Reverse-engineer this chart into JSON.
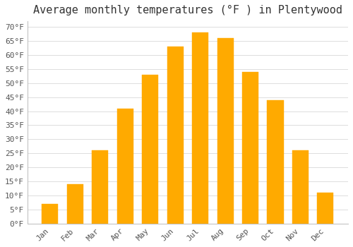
{
  "title": "Average monthly temperatures (°F ) in Plentywood",
  "months": [
    "Jan",
    "Feb",
    "Mar",
    "Apr",
    "May",
    "Jun",
    "Jul",
    "Aug",
    "Sep",
    "Oct",
    "Nov",
    "Dec"
  ],
  "values": [
    7,
    14,
    26,
    41,
    53,
    63,
    68,
    66,
    54,
    44,
    26,
    11
  ],
  "bar_color": "#FFAA00",
  "bar_edge_color": "#FFAA00",
  "background_color": "#FFFFFF",
  "plot_bg_color": "#FFFFFF",
  "grid_color": "#DDDDDD",
  "ylim": [
    0,
    72
  ],
  "yticks": [
    0,
    5,
    10,
    15,
    20,
    25,
    30,
    35,
    40,
    45,
    50,
    55,
    60,
    65,
    70
  ],
  "title_fontsize": 11,
  "tick_fontsize": 8,
  "font_family": "monospace",
  "bar_width": 0.65
}
